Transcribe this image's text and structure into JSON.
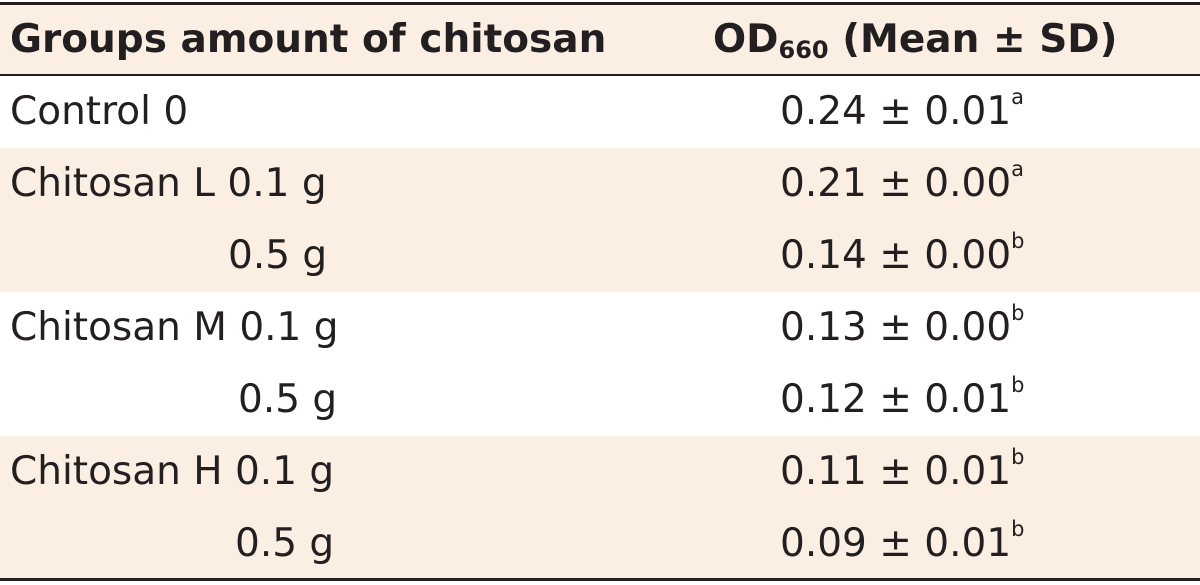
{
  "header": {
    "col1": "Groups amount of chitosan",
    "col2_prefix": "OD",
    "col2_sub": "660",
    "col2_suffix": " (Mean ± SD)"
  },
  "rows": [
    {
      "group": "Control 0",
      "amount": "",
      "value": "0.24 ± 0.01",
      "sig": "a"
    },
    {
      "group": "Chitosan L 0.1 g",
      "amount": "",
      "value": "0.21 ± 0.00",
      "sig": "a"
    },
    {
      "group": "",
      "amount": "0.5 g",
      "value": "0.14 ± 0.00",
      "sig": "b"
    },
    {
      "group": "Chitosan M 0.1 g",
      "amount": "",
      "value": "0.13 ± 0.00",
      "sig": "b"
    },
    {
      "group": "",
      "amount": "0.5 g",
      "value": "0.12 ± 0.01",
      "sig": "b"
    },
    {
      "group": "Chitosan H 0.1 g",
      "amount": "",
      "value": "0.11 ± 0.01",
      "sig": "b"
    },
    {
      "group": "",
      "amount": "0.5 g",
      "value": "0.09 ± 0.01",
      "sig": "b"
    }
  ],
  "colors": {
    "shade": "#fbeee3",
    "text": "#231f20"
  }
}
